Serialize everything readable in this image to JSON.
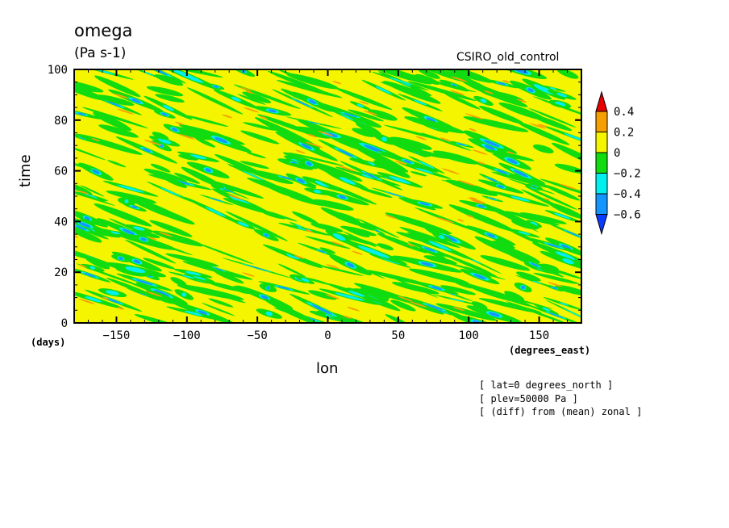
{
  "chart_data": {
    "type": "heatmap",
    "title": "omega",
    "units": "(Pa s-1)",
    "run_label": "CSIRO_old_control",
    "xlabel": "lon",
    "ylabel": "time",
    "x_units": "(degrees_east)",
    "y_units": "(days)",
    "xlim": [
      -180,
      180
    ],
    "ylim": [
      0,
      100
    ],
    "x_ticks": [
      -150,
      -100,
      -50,
      0,
      50,
      100,
      150
    ],
    "y_ticks": [
      0,
      20,
      40,
      60,
      80,
      100
    ],
    "colorbar": {
      "levels": [
        0.4,
        0.2,
        0,
        -0.2,
        -0.4,
        -0.6
      ],
      "colors": [
        "#e60000",
        "#f5a000",
        "#f5f500",
        "#10dc10",
        "#00f0f0",
        "#1496ff",
        "#0a3cff"
      ],
      "extend": "both"
    },
    "notes": [
      "[ lat=0 degrees_north ]",
      "[ plev=50000 Pa ]",
      "[ (diff) from (mean) zonal ]"
    ]
  }
}
